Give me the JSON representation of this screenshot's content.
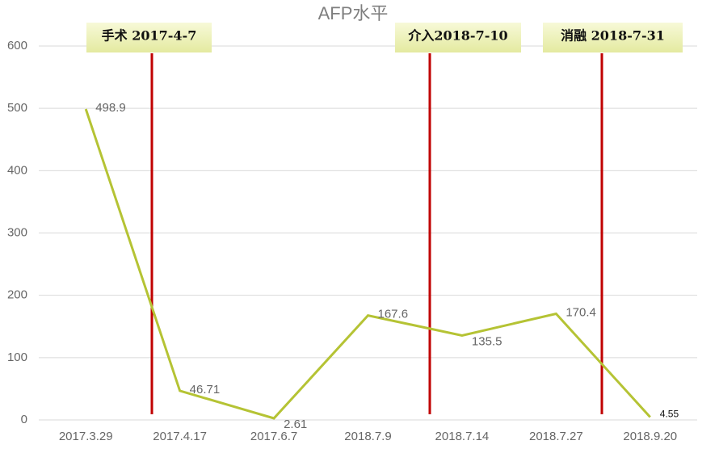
{
  "chart_data": {
    "type": "line",
    "title": "AFP水平",
    "categories": [
      "2017.3.29",
      "2017.4.17",
      "2017.6.7",
      "2018.7.9",
      "2018.7.14",
      "2018.7.27",
      "2018.9.20"
    ],
    "values": [
      498.9,
      46.71,
      2.61,
      167.6,
      135.5,
      170.4,
      4.55
    ],
    "color": "#b5c334",
    "ylim": [
      0,
      600
    ],
    "yticks": [
      0,
      100,
      200,
      300,
      400,
      500,
      600
    ],
    "grid": true,
    "annotations": [
      {
        "text": "手术 2017-4-7",
        "color": "#c00000"
      },
      {
        "text": "介入2018-7-10",
        "color": "#c00000"
      },
      {
        "text": "消融 2018-7-31",
        "color": "#c00000"
      }
    ]
  }
}
